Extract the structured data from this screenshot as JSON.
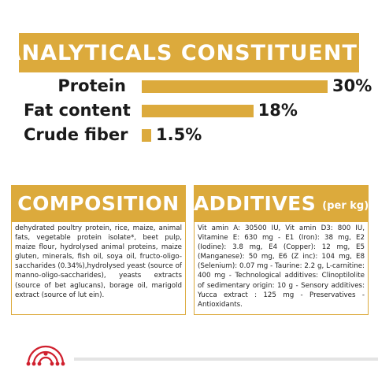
{
  "analytical": {
    "title": "ANALYTICALS CONSTITUENTS",
    "rows": [
      {
        "label": "Protein",
        "value_text": "30%",
        "value": 30
      },
      {
        "label": "Fat content",
        "value_text": "18%",
        "value": 18
      },
      {
        "label": "Crude fiber",
        "value_text": "1.5%",
        "value": 1.5
      }
    ]
  },
  "composition": {
    "title": "COMPOSITION",
    "text": "dehydrated poultry protein, rice, maize, animal fats, vegetable protein isolate*, beet pulp, maize flour, hydrolysed animal proteins, maize gluten, minerals, fish oil, soya oil, fructo-oligo-saccharides (0.34%),hydrolysed yeast (source of manno-oligo-saccharides), yeasts extracts (source of bet aglucans), borage oil, marigold extract (source of lut ein)."
  },
  "additives": {
    "title": "ADDITIVES",
    "subtitle": "(per kg)",
    "text": "Vit amin A: 30500 IU, Vit amin D3: 800 IU, Vitamine E: 630 mg - E1 (Iron): 38 mg, E2 (Iodine): 3.8 mg, E4 (Copper): 12 mg, E5 (Manganese): 50 mg, E6 (Z inc): 104 mg, E8 (Selenium): 0.07 mg - Taurine: 2.2 g, L-carnitine: 400 mg - Technological additives: Clinoptilolite of sedimentary origin: 10 g - Sensory additives: Yucca extract : 125 mg - Preservatives -Antioxidants."
  },
  "colors": {
    "accent": "#dcaa3c",
    "logo_red": "#d0202e"
  },
  "icons": {
    "logo": "royal-canin-crown-icon"
  }
}
